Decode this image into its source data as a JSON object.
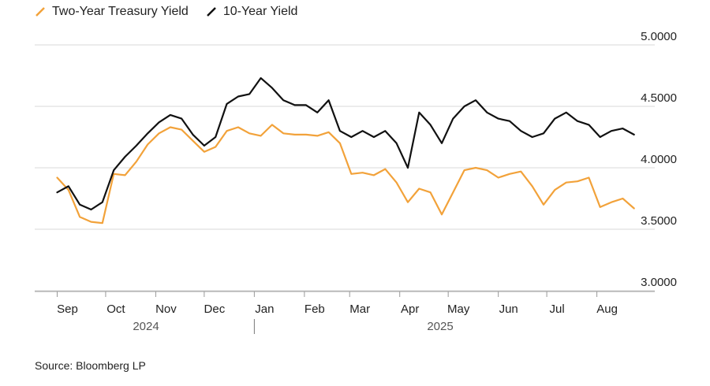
{
  "chart_data": {
    "type": "line",
    "title": "",
    "xlabel": "",
    "ylabel": "",
    "ylim": [
      3.0,
      5.0
    ],
    "y_ticks": [
      "5.0000",
      "4.5000",
      "4.0000",
      "3.5000",
      "3.0000"
    ],
    "x_tick_labels": [
      "Sep",
      "Oct",
      "Nov",
      "Dec",
      "Jan",
      "Feb",
      "Mar",
      "Apr",
      "May",
      "Jun",
      "Jul",
      "Aug"
    ],
    "year_labels": [
      "2024",
      "2025"
    ],
    "grid": true,
    "legend_position": "top-left",
    "x": [
      "2024-09-01",
      "2024-09-08",
      "2024-09-15",
      "2024-09-22",
      "2024-09-29",
      "2024-10-06",
      "2024-10-13",
      "2024-10-20",
      "2024-10-27",
      "2024-11-03",
      "2024-11-10",
      "2024-11-17",
      "2024-11-24",
      "2024-12-01",
      "2024-12-08",
      "2024-12-15",
      "2024-12-22",
      "2024-12-29",
      "2025-01-05",
      "2025-01-12",
      "2025-01-19",
      "2025-01-26",
      "2025-02-02",
      "2025-02-09",
      "2025-02-16",
      "2025-02-23",
      "2025-03-02",
      "2025-03-09",
      "2025-03-16",
      "2025-03-23",
      "2025-03-30",
      "2025-04-06",
      "2025-04-13",
      "2025-04-20",
      "2025-04-27",
      "2025-05-04",
      "2025-05-11",
      "2025-05-18",
      "2025-05-25",
      "2025-06-01",
      "2025-06-08",
      "2025-06-15",
      "2025-06-22",
      "2025-06-29",
      "2025-07-06",
      "2025-07-13",
      "2025-07-20",
      "2025-07-27",
      "2025-08-03",
      "2025-08-10",
      "2025-08-17",
      "2025-08-24"
    ],
    "series": [
      {
        "name": "Two-Year Treasury Yield",
        "color": "#F2A23A",
        "values": [
          3.92,
          3.82,
          3.6,
          3.56,
          3.55,
          3.95,
          3.94,
          4.05,
          4.19,
          4.28,
          4.33,
          4.31,
          4.22,
          4.13,
          4.17,
          4.3,
          4.33,
          4.28,
          4.26,
          4.35,
          4.28,
          4.27,
          4.27,
          4.26,
          4.29,
          4.2,
          3.95,
          3.96,
          3.94,
          3.99,
          3.88,
          3.72,
          3.83,
          3.8,
          3.62,
          3.8,
          3.98,
          4.0,
          3.98,
          3.92,
          3.95,
          3.97,
          3.85,
          3.7,
          3.82,
          3.88,
          3.89,
          3.92,
          3.68,
          3.72,
          3.75,
          3.67
        ]
      },
      {
        "name": "10-Year Yield",
        "color": "#111111",
        "values": [
          3.8,
          3.85,
          3.7,
          3.66,
          3.72,
          3.98,
          4.09,
          4.18,
          4.28,
          4.37,
          4.43,
          4.4,
          4.27,
          4.18,
          4.25,
          4.52,
          4.58,
          4.6,
          4.73,
          4.65,
          4.55,
          4.51,
          4.51,
          4.45,
          4.55,
          4.3,
          4.25,
          4.3,
          4.25,
          4.3,
          4.2,
          4.0,
          4.45,
          4.35,
          4.2,
          4.4,
          4.5,
          4.55,
          4.45,
          4.4,
          4.38,
          4.3,
          4.25,
          4.28,
          4.4,
          4.45,
          4.38,
          4.35,
          4.25,
          4.3,
          4.32,
          4.27
        ]
      }
    ]
  },
  "legend": {
    "items": [
      {
        "label": "Two-Year Treasury Yield",
        "color": "#F2A23A"
      },
      {
        "label": "10-Year Yield",
        "color": "#111111"
      }
    ]
  },
  "source": "Source: Bloomberg LP"
}
